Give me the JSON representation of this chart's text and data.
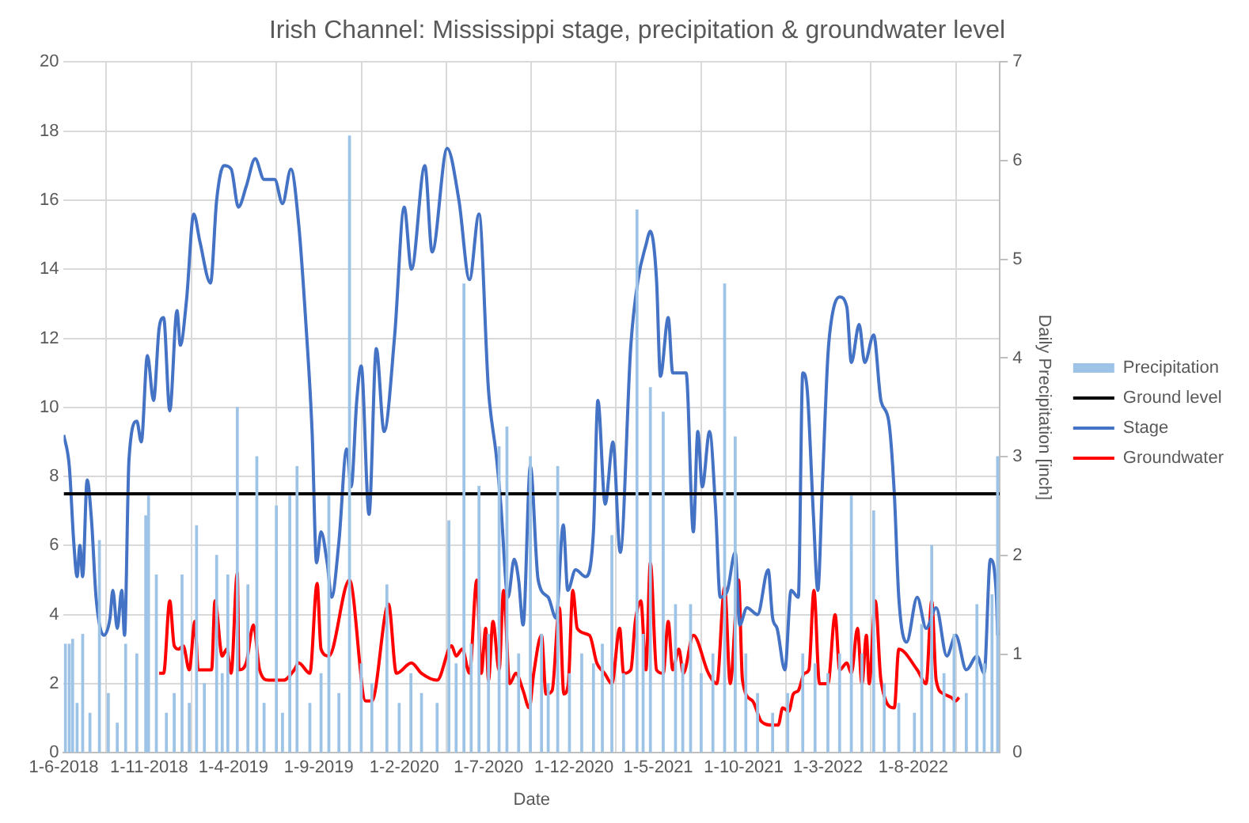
{
  "chart_data": {
    "type": "line",
    "title": "Irish Channel: Mississippi stage, precipitation & groundwater level",
    "xlabel": "Date",
    "y2label": "Daily Precipitation [inch]",
    "xlim": [
      "2018-06-01",
      "2023-01-03"
    ],
    "xticks": [
      {
        "value": "2018-06-01",
        "label": "1-6-2018"
      },
      {
        "value": "2018-11-01",
        "label": "1-11-2018"
      },
      {
        "value": "2019-04-01",
        "label": "1-4-2019"
      },
      {
        "value": "2019-09-01",
        "label": "1-9-2019"
      },
      {
        "value": "2020-02-01",
        "label": "1-2-2020"
      },
      {
        "value": "2020-07-01",
        "label": "1-7-2020"
      },
      {
        "value": "2020-12-01",
        "label": "1-12-2020"
      },
      {
        "value": "2021-05-01",
        "label": "1-5-2021"
      },
      {
        "value": "2021-10-01",
        "label": "1-10-2021"
      },
      {
        "value": "2022-03-01",
        "label": "1-3-2022"
      },
      {
        "value": "2022-08-01",
        "label": "1-8-2022"
      }
    ],
    "ylim": [
      0,
      20
    ],
    "yticks": [
      0,
      2,
      4,
      6,
      8,
      10,
      12,
      14,
      16,
      18,
      20
    ],
    "y2lim": [
      0,
      7
    ],
    "y2ticks": [
      0,
      1,
      2,
      3,
      4,
      5,
      6,
      7
    ],
    "grid": true,
    "legend": "right",
    "marker": "none",
    "series": [
      {
        "name": "Precipitation",
        "type": "bar",
        "axis": "y2",
        "color": "#9dc3e6",
        "x": [
          "2018-06-04",
          "2018-06-11",
          "2018-06-17",
          "2018-06-25",
          "2018-07-05",
          "2018-07-18",
          "2018-08-04",
          "2018-08-20",
          "2018-09-05",
          "2018-09-20",
          "2018-10-10",
          "2018-10-26",
          "2018-10-31",
          "2018-11-14",
          "2018-12-02",
          "2018-12-16",
          "2018-12-30",
          "2019-01-12",
          "2019-01-25",
          "2019-02-08",
          "2019-03-02",
          "2019-03-12",
          "2019-03-22",
          "2019-04-08",
          "2019-04-27",
          "2019-05-13",
          "2019-05-26",
          "2019-06-17",
          "2019-06-28",
          "2019-07-11",
          "2019-07-24",
          "2019-08-16",
          "2019-09-05",
          "2019-09-19",
          "2019-10-07",
          "2019-10-26",
          "2019-11-16",
          "2019-12-05",
          "2020-01-01",
          "2020-01-23",
          "2020-02-13",
          "2020-03-03",
          "2020-03-31",
          "2020-04-21",
          "2020-05-04",
          "2020-05-18",
          "2020-05-31",
          "2020-06-14",
          "2020-07-01",
          "2020-07-20",
          "2020-08-03",
          "2020-08-24",
          "2020-09-14",
          "2020-10-04",
          "2020-10-16",
          "2020-11-02",
          "2020-11-23",
          "2020-12-15",
          "2021-01-05",
          "2021-01-21",
          "2021-02-07",
          "2021-02-28",
          "2021-03-24",
          "2021-04-04",
          "2021-04-17",
          "2021-05-10",
          "2021-06-01",
          "2021-06-14",
          "2021-06-28",
          "2021-07-17",
          "2021-08-07",
          "2021-08-28",
          "2021-09-16",
          "2021-10-05",
          "2021-10-26",
          "2021-11-22",
          "2021-12-19",
          "2022-01-15",
          "2022-02-06",
          "2022-03-01",
          "2022-03-22",
          "2022-04-12",
          "2022-05-01",
          "2022-05-22",
          "2022-06-10",
          "2022-07-06",
          "2022-08-03",
          "2022-08-16",
          "2022-09-03",
          "2022-09-25",
          "2022-10-13",
          "2022-11-04",
          "2022-11-23",
          "2022-12-06",
          "2022-12-20",
          "2022-12-30"
        ],
        "values": [
          1.1,
          1.1,
          1.15,
          0.5,
          1.2,
          0.4,
          2.15,
          0.6,
          0.3,
          1.1,
          1.0,
          2.4,
          2.6,
          1.8,
          0.4,
          0.6,
          1.8,
          0.5,
          2.3,
          0.7,
          2.0,
          0.8,
          1.8,
          3.5,
          1.7,
          3.0,
          0.5,
          2.5,
          0.4,
          2.6,
          2.9,
          0.5,
          0.8,
          2.6,
          0.6,
          6.25,
          0.9,
          0.7,
          1.7,
          0.5,
          0.8,
          0.6,
          0.5,
          2.35,
          0.9,
          4.75,
          1.1,
          2.7,
          1.2,
          3.1,
          3.3,
          1.0,
          3.0,
          1.2,
          0.7,
          2.9,
          0.8,
          1.0,
          0.9,
          1.1,
          2.2,
          0.8,
          5.5,
          1.2,
          3.7,
          3.45,
          1.5,
          0.9,
          1.5,
          0.8,
          1.0,
          4.75,
          3.2,
          1.0,
          0.6,
          0.4,
          0.6,
          1.0,
          0.9,
          0.8,
          1.0,
          2.6,
          1.0,
          2.45,
          0.7,
          0.5,
          0.4,
          1.3,
          2.1,
          0.8,
          1.2,
          0.6,
          1.5,
          0.9,
          1.6,
          3.0
        ]
      },
      {
        "name": "Ground level",
        "color": "#000000",
        "x": [
          "2018-06-01",
          "2023-01-03"
        ],
        "values": [
          7.5,
          7.5
        ]
      },
      {
        "name": "Stage",
        "color": "#4472c4",
        "x": [
          "2018-06-01",
          "2018-06-11",
          "2018-06-19",
          "2018-06-25",
          "2018-06-30",
          "2018-07-05",
          "2018-07-13",
          "2018-07-21",
          "2018-07-29",
          "2018-08-12",
          "2018-08-23",
          "2018-08-28",
          "2018-09-05",
          "2018-09-13",
          "2018-09-18",
          "2018-09-26",
          "2018-10-10",
          "2018-10-18",
          "2018-10-29",
          "2018-11-09",
          "2018-11-19",
          "2018-11-27",
          "2018-12-08",
          "2018-12-21",
          "2018-12-27",
          "2019-01-07",
          "2019-01-20",
          "2019-01-31",
          "2019-02-19",
          "2019-03-02",
          "2019-03-15",
          "2019-03-28",
          "2019-04-10",
          "2019-04-24",
          "2019-05-10",
          "2019-05-26",
          "2019-06-14",
          "2019-06-28",
          "2019-07-13",
          "2019-07-27",
          "2019-08-09",
          "2019-08-20",
          "2019-08-28",
          "2019-09-05",
          "2019-09-16",
          "2019-09-24",
          "2019-10-07",
          "2019-10-21",
          "2019-10-29",
          "2019-11-08",
          "2019-11-16",
          "2019-11-30",
          "2019-12-13",
          "2019-12-27",
          "2020-01-15",
          "2020-02-01",
          "2020-02-14",
          "2020-03-09",
          "2020-03-22",
          "2020-04-18",
          "2020-05-09",
          "2020-05-28",
          "2020-06-14",
          "2020-07-01",
          "2020-07-15",
          "2020-07-23",
          "2020-08-05",
          "2020-08-16",
          "2020-08-24",
          "2020-09-01",
          "2020-09-14",
          "2020-09-28",
          "2020-10-16",
          "2020-10-30",
          "2020-11-12",
          "2020-11-20",
          "2020-12-04",
          "2020-12-22",
          "2021-01-05",
          "2021-01-13",
          "2021-01-26",
          "2021-02-09",
          "2021-02-22",
          "2021-03-13",
          "2021-03-26",
          "2021-04-09",
          "2021-04-17",
          "2021-04-28",
          "2021-05-05",
          "2021-05-19",
          "2021-05-27",
          "2021-06-20",
          "2021-07-03",
          "2021-07-11",
          "2021-07-19",
          "2021-08-01",
          "2021-08-12",
          "2021-08-20",
          "2021-09-02",
          "2021-09-16",
          "2021-09-24",
          "2021-10-07",
          "2021-10-26",
          "2021-11-14",
          "2021-11-22",
          "2021-11-30",
          "2021-12-14",
          "2021-12-25",
          "2022-01-07",
          "2022-01-15",
          "2022-01-23",
          "2022-02-03",
          "2022-02-11",
          "2022-02-19",
          "2022-03-01",
          "2022-03-08",
          "2022-03-22",
          "2022-04-04",
          "2022-04-12",
          "2022-04-26",
          "2022-05-06",
          "2022-05-22",
          "2022-06-04",
          "2022-06-18",
          "2022-06-28",
          "2022-07-06",
          "2022-07-20",
          "2022-08-08",
          "2022-08-24",
          "2022-09-11",
          "2022-09-30",
          "2022-10-16",
          "2022-11-04",
          "2022-11-23",
          "2022-12-06",
          "2022-12-17",
          "2022-12-28",
          "2022-12-30"
        ],
        "values": [
          9.2,
          8.3,
          6.1,
          5.1,
          6.0,
          5.1,
          7.9,
          6.7,
          4.5,
          3.4,
          3.9,
          4.7,
          3.6,
          4.7,
          3.4,
          8.5,
          9.6,
          9.0,
          11.5,
          10.2,
          12.3,
          12.6,
          9.9,
          12.8,
          11.8,
          13.1,
          15.6,
          14.8,
          13.6,
          16.0,
          17.0,
          16.9,
          15.8,
          16.4,
          17.2,
          16.6,
          16.6,
          15.9,
          16.9,
          15.3,
          12.4,
          9.3,
          5.5,
          6.4,
          5.5,
          4.5,
          6.1,
          8.8,
          7.7,
          10.2,
          11.2,
          6.9,
          11.7,
          9.3,
          12.1,
          15.8,
          14.0,
          17.0,
          14.5,
          17.5,
          16.0,
          13.7,
          15.6,
          10.5,
          8.6,
          7.2,
          4.5,
          5.6,
          5.0,
          3.7,
          8.3,
          5.0,
          4.5,
          3.9,
          6.6,
          4.7,
          5.3,
          5.1,
          6.4,
          10.2,
          7.2,
          9.0,
          5.8,
          11.8,
          13.7,
          14.7,
          15.1,
          13.7,
          10.9,
          12.6,
          11.0,
          11.0,
          6.4,
          9.3,
          7.7,
          9.3,
          7.0,
          4.5,
          4.7,
          5.8,
          3.7,
          4.2,
          4.0,
          5.3,
          3.9,
          3.6,
          2.4,
          4.7,
          4.5,
          11.0,
          10.5,
          6.9,
          4.7,
          7.7,
          11.5,
          12.6,
          13.2,
          12.9,
          11.3,
          12.4,
          11.3,
          12.1,
          10.2,
          9.6,
          7.5,
          4.5,
          3.2,
          4.5,
          3.6,
          4.2,
          2.8,
          3.4,
          2.4,
          2.8,
          2.3,
          5.6,
          4.5,
          3.4
        ]
      },
      {
        "name": "Groundwater",
        "color": "#ff0000",
        "x": [
          "2018-11-19",
          "2018-11-27",
          "2018-12-08",
          "2018-12-16",
          "2018-12-24",
          "2019-01-01",
          "2019-01-12",
          "2019-01-22",
          "2019-01-28",
          "2019-02-21",
          "2019-02-27",
          "2019-03-12",
          "2019-03-20",
          "2019-03-28",
          "2019-04-08",
          "2019-04-11",
          "2019-04-24",
          "2019-05-07",
          "2019-05-18",
          "2019-06-03",
          "2019-06-30",
          "2019-07-19",
          "2019-07-27",
          "2019-08-16",
          "2019-08-29",
          "2019-09-05",
          "2019-09-19",
          "2019-10-26",
          "2019-11-24",
          "2019-12-05",
          "2020-01-04",
          "2020-01-18",
          "2020-02-14",
          "2020-03-03",
          "2020-03-31",
          "2020-04-26",
          "2020-05-04",
          "2020-05-15",
          "2020-05-28",
          "2020-06-10",
          "2020-06-18",
          "2020-06-26",
          "2020-07-01",
          "2020-07-09",
          "2020-07-20",
          "2020-07-28",
          "2020-08-08",
          "2020-08-19",
          "2020-09-01",
          "2020-09-12",
          "2020-09-20",
          "2020-10-04",
          "2020-10-12",
          "2020-10-23",
          "2020-11-05",
          "2020-11-13",
          "2020-11-21",
          "2020-11-29",
          "2020-12-07",
          "2020-12-29",
          "2021-01-11",
          "2021-01-25",
          "2021-02-07",
          "2021-02-21",
          "2021-02-28",
          "2021-03-13",
          "2021-03-21",
          "2021-03-31",
          "2021-04-09",
          "2021-04-17",
          "2021-04-28",
          "2021-05-10",
          "2021-05-19",
          "2021-05-27",
          "2021-06-07",
          "2021-06-15",
          "2021-07-03",
          "2021-07-30",
          "2021-08-14",
          "2021-08-28",
          "2021-09-07",
          "2021-09-22",
          "2021-09-29",
          "2021-10-17",
          "2021-11-02",
          "2021-11-21",
          "2021-12-02",
          "2021-12-10",
          "2021-12-21",
          "2021-12-29",
          "2022-01-07",
          "2022-01-18",
          "2022-01-26",
          "2022-02-04",
          "2022-02-14",
          "2022-03-01",
          "2022-03-14",
          "2022-03-22",
          "2022-04-04",
          "2022-04-12",
          "2022-04-23",
          "2022-05-01",
          "2022-05-09",
          "2022-05-14",
          "2022-05-25",
          "2022-06-04",
          "2022-06-28",
          "2022-07-06",
          "2022-08-08",
          "2022-08-24",
          "2022-09-03",
          "2022-09-11",
          "2022-09-25",
          "2022-10-08",
          "2022-10-16",
          "2022-10-22"
        ],
        "values": [
          2.3,
          2.3,
          4.4,
          3.1,
          3.0,
          3.1,
          2.4,
          3.8,
          2.4,
          2.4,
          4.4,
          2.8,
          3.0,
          2.3,
          5.2,
          2.4,
          2.6,
          3.7,
          2.4,
          2.1,
          2.1,
          2.4,
          2.6,
          2.3,
          4.9,
          3.0,
          2.8,
          5.0,
          1.5,
          1.5,
          4.3,
          2.3,
          2.6,
          2.3,
          2.1,
          3.1,
          2.8,
          3.0,
          2.3,
          5.0,
          2.3,
          3.6,
          2.1,
          3.8,
          2.4,
          4.7,
          2.0,
          2.3,
          1.8,
          1.3,
          2.3,
          3.4,
          1.7,
          1.8,
          4.2,
          1.7,
          2.0,
          4.7,
          3.6,
          3.4,
          2.6,
          2.3,
          2.0,
          3.6,
          2.3,
          2.4,
          3.8,
          4.4,
          2.4,
          5.5,
          2.4,
          2.3,
          3.8,
          2.4,
          3.0,
          2.3,
          3.4,
          2.3,
          2.0,
          4.8,
          2.0,
          5.0,
          2.1,
          1.5,
          0.9,
          0.8,
          0.8,
          1.3,
          1.2,
          1.7,
          1.8,
          2.3,
          2.4,
          4.7,
          2.0,
          2.0,
          4.0,
          2.4,
          2.6,
          2.3,
          3.6,
          2.0,
          3.4,
          2.0,
          4.4,
          2.1,
          1.3,
          3.0,
          2.4,
          2.0,
          4.4,
          2.1,
          1.7,
          1.6,
          1.5,
          1.6
        ]
      }
    ]
  }
}
